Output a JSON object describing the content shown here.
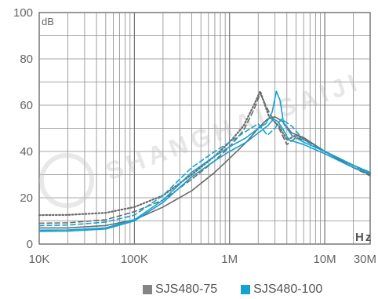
{
  "chart_data": {
    "type": "line",
    "unit_label": "dB",
    "x_axis_unit": "Hz",
    "x_scale": "log",
    "xlim": [
      10000,
      30000000
    ],
    "ylim": [
      0,
      100
    ],
    "grid": true,
    "legend_placement": "bottom-right",
    "watermark": "SHANGHAI SAIJI",
    "x_ticks": [
      {
        "value": 10000,
        "label": "10K"
      },
      {
        "value": 100000,
        "label": "100K"
      },
      {
        "value": 1000000,
        "label": "1M"
      },
      {
        "value": 10000000,
        "label": "10M"
      },
      {
        "value": 30000000,
        "label": "30M"
      }
    ],
    "y_ticks": [
      0,
      20,
      40,
      60,
      80,
      100
    ],
    "legend": [
      {
        "label": "SJS480-75",
        "color": "#858585"
      },
      {
        "label": "SJS480-100",
        "color": "#13a2d2"
      }
    ],
    "series": [
      {
        "group": "SJS480-75",
        "color": "#6a6a6a",
        "style": "dotted",
        "x": [
          10000,
          20000,
          50000,
          100000,
          200000,
          400000,
          700000,
          1000000,
          1400000,
          1800000,
          2100000,
          2600000,
          3300000,
          4000000,
          5000000,
          7000000,
          10000000,
          20000000,
          30000000
        ],
        "y": [
          12.5,
          12.6,
          13.5,
          16,
          21,
          30,
          38,
          44,
          51,
          60,
          66,
          55,
          51,
          45,
          47,
          44,
          40,
          34,
          30.5
        ]
      },
      {
        "group": "SJS480-75",
        "color": "#6a6a6a",
        "style": "dashed",
        "x": [
          10000,
          20000,
          50000,
          100000,
          200000,
          400000,
          700000,
          1000000,
          1400000,
          1800000,
          2100000,
          2600000,
          3300000,
          4000000,
          5000000,
          7000000,
          10000000,
          20000000,
          30000000
        ],
        "y": [
          9,
          9.2,
          10.5,
          14,
          19,
          28,
          36,
          42,
          49,
          58,
          65,
          57,
          50,
          43,
          46,
          44,
          40,
          33,
          29.5
        ]
      },
      {
        "group": "SJS480-75",
        "color": "#6a6a6a",
        "style": "solid",
        "x": [
          10000,
          20000,
          50000,
          100000,
          200000,
          400000,
          700000,
          1000000,
          1500000,
          2000000,
          2500000,
          3000000,
          3600000,
          4500000,
          6000000,
          10000000,
          20000000,
          30000000
        ],
        "y": [
          7,
          7,
          8,
          10.5,
          16,
          23,
          31,
          37,
          44,
          50,
          54,
          55,
          53,
          48,
          46,
          40,
          33,
          30
        ]
      },
      {
        "group": "SJS480-100",
        "color": "#13a2d2",
        "style": "dashed",
        "x": [
          10000,
          20000,
          50000,
          100000,
          200000,
          400000,
          700000,
          1000000,
          1400000,
          2000000,
          2500000,
          3000000,
          3500000,
          4500000,
          6000000,
          10000000,
          20000000,
          30000000
        ],
        "y": [
          8,
          8.2,
          9.5,
          12.5,
          21,
          33,
          40,
          44,
          48,
          52,
          47,
          50,
          54,
          51,
          45,
          40,
          34,
          31
        ]
      },
      {
        "group": "SJS480-100",
        "color": "#13a2d2",
        "style": "solid",
        "x": [
          10000,
          20000,
          50000,
          100000,
          200000,
          400000,
          700000,
          1000000,
          1500000,
          2000000,
          2400000,
          2800000,
          3100000,
          3400000,
          3700000,
          4500000,
          6000000,
          10000000,
          20000000,
          30000000
        ],
        "y": [
          6,
          6.1,
          7,
          10.5,
          19,
          31,
          38,
          42,
          46,
          50,
          52,
          57,
          66,
          62,
          52,
          47,
          44,
          40,
          34,
          31
        ]
      },
      {
        "group": "SJS480-100",
        "color": "#13a2d2",
        "style": "solid",
        "x": [
          10000,
          20000,
          50000,
          100000,
          200000,
          400000,
          700000,
          1000000,
          1500000,
          2000000,
          2500000,
          2900000,
          3200000,
          3600000,
          4200000,
          6000000,
          10000000,
          20000000,
          30000000
        ],
        "y": [
          5.5,
          5.6,
          6.5,
          10,
          18,
          29,
          36,
          40,
          44,
          48,
          51,
          54,
          53,
          50,
          45,
          43,
          39,
          33,
          30.5
        ]
      }
    ]
  }
}
